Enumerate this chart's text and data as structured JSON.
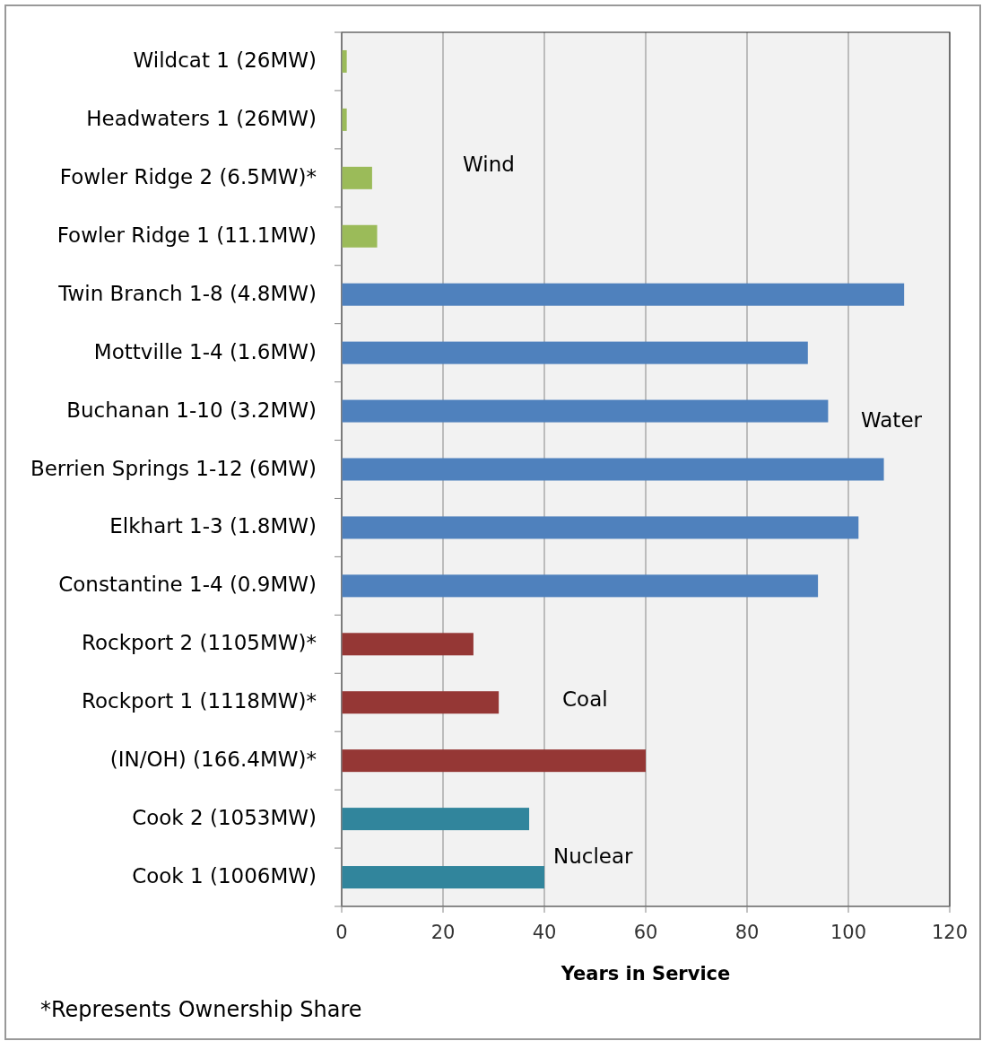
{
  "chart_data": {
    "type": "bar",
    "orientation": "horizontal",
    "categories": [
      "Wildcat 1 (26MW)",
      "Headwaters 1 (26MW)",
      "Fowler Ridge 2 (6.5MW)*",
      "Fowler Ridge 1 (11.1MW)",
      "Twin Branch 1-8 (4.8MW)",
      "Mottville 1-4 (1.6MW)",
      "Buchanan 1-10 (3.2MW)",
      "Berrien Springs 1-12 (6MW)",
      "Elkhart 1-3 (1.8MW)",
      "Constantine 1-4 (0.9MW)",
      "Rockport 2 (1105MW)*",
      "Rockport 1 (1118MW)*",
      "(IN/OH) (166.4MW)*",
      "Cook 2 (1053MW)",
      "Cook 1 (1006MW)"
    ],
    "values": [
      1,
      1,
      6,
      7,
      111,
      92,
      96,
      107,
      102,
      94,
      26,
      31,
      60,
      37,
      40
    ],
    "colors": [
      "#9bbb59",
      "#9bbb59",
      "#9bbb59",
      "#9bbb59",
      "#4f81bd",
      "#4f81bd",
      "#4f81bd",
      "#4f81bd",
      "#4f81bd",
      "#4f81bd",
      "#953735",
      "#953735",
      "#953735",
      "#31859c",
      "#31859c"
    ],
    "xlabel": "Years in Service",
    "xlim": [
      0,
      120
    ],
    "xticks": [
      0,
      20,
      40,
      60,
      80,
      100,
      120
    ],
    "grid": "x",
    "annotations": [
      "Wind",
      "Water",
      "Coal",
      "Nuclear",
      "*Represents Ownership Share"
    ]
  }
}
